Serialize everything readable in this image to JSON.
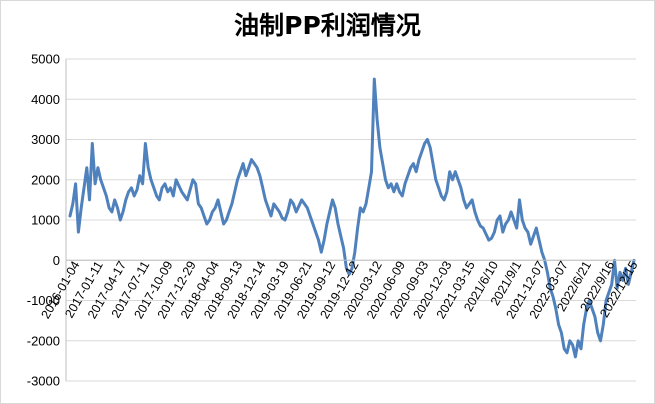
{
  "chart_data": {
    "type": "line",
    "title": "油制PP利润情况",
    "xlabel": "",
    "ylabel": "",
    "ylim": [
      -3000,
      5000
    ],
    "yticks": [
      -3000,
      -2000,
      -1000,
      0,
      1000,
      2000,
      3000,
      4000,
      5000
    ],
    "grid": "horizontal",
    "legend": "none",
    "x_tick_labels": [
      "2016-01-04",
      "2017-01-11",
      "2017-04-17",
      "2017-07-11",
      "2017-10-09",
      "2017-12-29",
      "2018-04-04",
      "2018-09-13",
      "2018-12-14",
      "2019-03-19",
      "2019-06-21",
      "2019-09-12",
      "2019-12-12",
      "2020-03-12",
      "2020-06-09",
      "2020-09-03",
      "2020-12-03",
      "2021-03-15",
      "2021/6/10",
      "2021/9/1",
      "2021-12-07",
      "2022-03-07",
      "2022/6/21",
      "2022/9/16",
      "2022/12/15"
    ],
    "series": [
      {
        "color": "#4f81bd",
        "values": [
          1100,
          1400,
          1900,
          700,
          1300,
          1800,
          2300,
          1500,
          2900,
          1900,
          2300,
          2000,
          1800,
          1600,
          1300,
          1200,
          1500,
          1300,
          1000,
          1200,
          1500,
          1700,
          1800,
          1600,
          1750,
          2100,
          1900,
          2900,
          2300,
          2000,
          1800,
          1600,
          1500,
          1800,
          1900,
          1700,
          1800,
          1600,
          2000,
          1850,
          1700,
          1600,
          1500,
          1750,
          2000,
          1900,
          1400,
          1300,
          1100,
          900,
          1000,
          1200,
          1300,
          1500,
          1200,
          900,
          1000,
          1200,
          1400,
          1700,
          2000,
          2200,
          2400,
          2100,
          2300,
          2500,
          2400,
          2300,
          2100,
          1800,
          1500,
          1300,
          1100,
          1400,
          1300,
          1200,
          1050,
          1000,
          1200,
          1500,
          1400,
          1200,
          1350,
          1500,
          1400,
          1300,
          1100,
          900,
          700,
          500,
          200,
          500,
          900,
          1200,
          1500,
          1300,
          900,
          600,
          300,
          -200,
          -350,
          -200,
          200,
          800,
          1300,
          1200,
          1400,
          1800,
          2200,
          4500,
          3500,
          2800,
          2400,
          2000,
          1800,
          1900,
          1700,
          1900,
          1700,
          1600,
          1900,
          2100,
          2300,
          2400,
          2200,
          2500,
          2700,
          2900,
          3000,
          2800,
          2400,
          2000,
          1800,
          1600,
          1500,
          1700,
          2200,
          2000,
          2200,
          2000,
          1800,
          1500,
          1300,
          1400,
          1500,
          1200,
          1000,
          850,
          800,
          650,
          500,
          550,
          700,
          1000,
          1100,
          700,
          900,
          1000,
          1200,
          1000,
          800,
          1500,
          1000,
          800,
          700,
          400,
          600,
          800,
          500,
          200,
          0,
          -300,
          -700,
          -900,
          -1200,
          -1600,
          -1800,
          -2200,
          -2300,
          -2000,
          -2100,
          -2400,
          -2000,
          -2200,
          -1600,
          -1200,
          -1000,
          -1200,
          -1400,
          -1800,
          -2000,
          -1600,
          -1000,
          -800,
          -600,
          0,
          -700,
          -300,
          -500,
          -200,
          -600,
          -300,
          0
        ]
      }
    ]
  }
}
